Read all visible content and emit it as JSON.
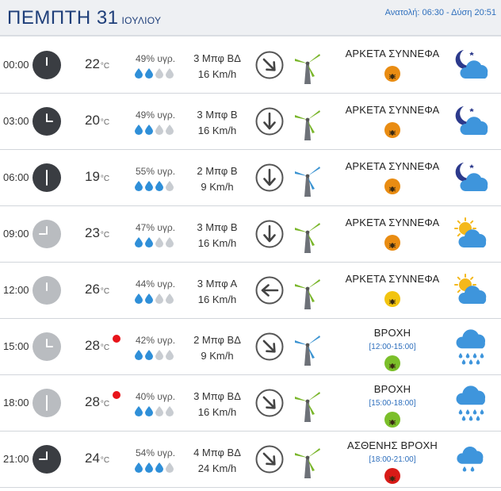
{
  "header": {
    "title": "ΠΕΜΠΤΗ 31",
    "month": "ΙΟΥΛΙΟΥ",
    "sun_info": "Ανατολή: 06:30 - Δύση 20:51"
  },
  "temp_unit": "°C",
  "rows": [
    {
      "time": "00:00",
      "clock": "dark",
      "clock_hand": "up",
      "temp": "22",
      "alert": false,
      "humidity": "49% υγρ.",
      "drops_filled": 2,
      "wind_force": "3 Μπφ ΒΔ",
      "wind_speed": "16 Km/h",
      "wind_arrow": "down-right",
      "turbine": "green",
      "condition": "ΑΡΚΕΤΑ ΣΥΝΝΕΦΑ",
      "range": "",
      "badge": "orange",
      "icon": "moon-cloud-icon"
    },
    {
      "time": "03:00",
      "clock": "dark",
      "clock_hand": "right",
      "temp": "20",
      "alert": false,
      "humidity": "49% υγρ.",
      "drops_filled": 2,
      "wind_force": "3 Μπφ Β",
      "wind_speed": "16 Km/h",
      "wind_arrow": "down",
      "turbine": "green",
      "condition": "ΑΡΚΕΤΑ ΣΥΝΝΕΦΑ",
      "range": "",
      "badge": "orange",
      "icon": "moon-cloud-icon"
    },
    {
      "time": "06:00",
      "clock": "dark",
      "clock_hand": "down",
      "temp": "19",
      "alert": false,
      "humidity": "55% υγρ.",
      "drops_filled": 3,
      "wind_force": "2 Μπφ Β",
      "wind_speed": "9 Km/h",
      "wind_arrow": "down",
      "turbine": "blue",
      "condition": "ΑΡΚΕΤΑ ΣΥΝΝΕΦΑ",
      "range": "",
      "badge": "orange",
      "icon": "moon-cloud-icon"
    },
    {
      "time": "09:00",
      "clock": "light",
      "clock_hand": "left",
      "temp": "23",
      "alert": false,
      "humidity": "47% υγρ.",
      "drops_filled": 2,
      "wind_force": "3 Μπφ Β",
      "wind_speed": "16 Km/h",
      "wind_arrow": "down",
      "turbine": "green",
      "condition": "ΑΡΚΕΤΑ ΣΥΝΝΕΦΑ",
      "range": "",
      "badge": "orange",
      "icon": "sun-cloud-icon"
    },
    {
      "time": "12:00",
      "clock": "light",
      "clock_hand": "up",
      "temp": "26",
      "alert": false,
      "humidity": "44% υγρ.",
      "drops_filled": 2,
      "wind_force": "3 Μπφ Α",
      "wind_speed": "16 Km/h",
      "wind_arrow": "left",
      "turbine": "green",
      "condition": "ΑΡΚΕΤΑ ΣΥΝΝΕΦΑ",
      "range": "",
      "badge": "yellow",
      "icon": "sun-cloud-icon"
    },
    {
      "time": "15:00",
      "clock": "light",
      "clock_hand": "right",
      "temp": "28",
      "alert": true,
      "humidity": "42% υγρ.",
      "drops_filled": 2,
      "wind_force": "2 Μπφ ΒΔ",
      "wind_speed": "9 Km/h",
      "wind_arrow": "down-right",
      "turbine": "blue",
      "condition": "ΒΡΟΧΗ",
      "range": "[12:00-15:00]",
      "badge": "green",
      "icon": "rain-cloud-icon"
    },
    {
      "time": "18:00",
      "clock": "light",
      "clock_hand": "down",
      "temp": "28",
      "alert": true,
      "humidity": "40% υγρ.",
      "drops_filled": 2,
      "wind_force": "3 Μπφ ΒΔ",
      "wind_speed": "16 Km/h",
      "wind_arrow": "down-right",
      "turbine": "green",
      "condition": "ΒΡΟΧΗ",
      "range": "[15:00-18:00]",
      "badge": "green",
      "icon": "rain-cloud-icon"
    },
    {
      "time": "21:00",
      "clock": "dark",
      "clock_hand": "left",
      "temp": "24",
      "alert": false,
      "humidity": "54% υγρ.",
      "drops_filled": 3,
      "wind_force": "4 Μπφ ΒΔ",
      "wind_speed": "24 Km/h",
      "wind_arrow": "down-right",
      "turbine": "green",
      "condition": "ΑΣΘΕΝΗΣ ΒΡΟΧΗ",
      "range": "[18:00-21:00]",
      "badge": "red",
      "icon": "light-rain-cloud-icon"
    }
  ]
}
